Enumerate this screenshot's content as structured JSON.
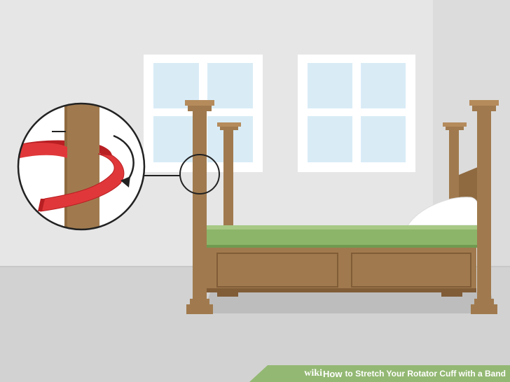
{
  "watermark": {
    "brand": "wiki",
    "how": "How",
    "title": "to Stretch Your Rotator Cuff with a Band"
  },
  "colors": {
    "wall": "#e6e6e6",
    "wall_shade": "#d9d9d9",
    "floor": "#d2d2d2",
    "window_frame": "#ffffff",
    "window_glass": "#d9ecf6",
    "wood": "#a07a4e",
    "wood_dark": "#805c37",
    "wood_light": "#b58b5c",
    "mattress": "#8db56a",
    "mattress_dark": "#6f9a4f",
    "pillow": "#ffffff",
    "band": "#e0383a",
    "band_dark": "#b81f23",
    "outline": "#222222",
    "watermark_bg": "#93b873"
  }
}
